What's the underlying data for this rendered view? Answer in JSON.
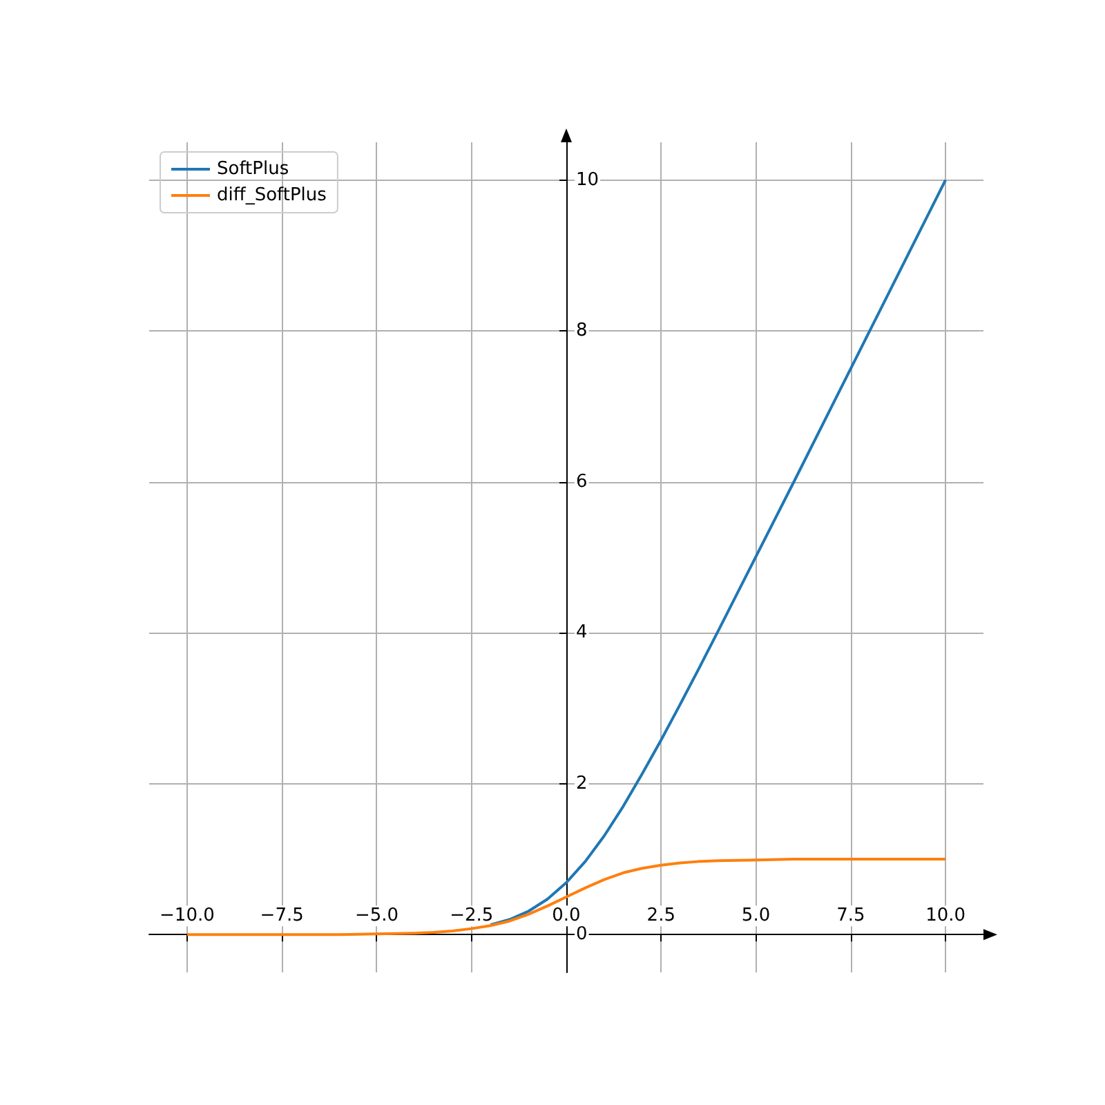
{
  "chart_data": {
    "type": "line",
    "x": [
      -10,
      -9,
      -8,
      -7,
      -6,
      -5,
      -4,
      -3.5,
      -3,
      -2.5,
      -2,
      -1.5,
      -1,
      -0.5,
      0,
      0.5,
      1,
      1.5,
      2,
      2.5,
      3,
      3.5,
      4,
      5,
      6,
      7,
      8,
      9,
      10
    ],
    "series": [
      {
        "name": "SoftPlus",
        "color": "#1f77b4",
        "values": [
          null,
          null,
          null,
          null,
          null,
          null,
          null,
          null,
          null,
          null,
          0.13,
          0.2,
          0.31,
          0.47,
          0.69,
          0.97,
          1.31,
          1.7,
          2.13,
          2.58,
          3.05,
          3.53,
          4.02,
          5.01,
          6,
          7,
          8,
          9,
          10
        ]
      },
      {
        "name": "diff_SoftPlus",
        "color": "#ff7f0e",
        "values": [
          0,
          0,
          0,
          0,
          0,
          0.01,
          0.02,
          0.03,
          0.05,
          0.08,
          0.12,
          0.18,
          0.27,
          0.38,
          0.5,
          0.62,
          0.73,
          0.82,
          0.88,
          0.92,
          0.95,
          0.97,
          0.98,
          0.99,
          1,
          1,
          1,
          1,
          1
        ]
      }
    ],
    "xlim": [
      -11,
      11
    ],
    "xticks": [
      {
        "value": -10,
        "label": "−10.0"
      },
      {
        "value": -7.5,
        "label": "−7.5"
      },
      {
        "value": -5,
        "label": "−5.0"
      },
      {
        "value": -2.5,
        "label": "−2.5"
      },
      {
        "value": 0,
        "label": "0.0"
      },
      {
        "value": 2.5,
        "label": "2.5"
      },
      {
        "value": 5,
        "label": "5.0"
      },
      {
        "value": 7.5,
        "label": "7.5"
      },
      {
        "value": 10,
        "label": "10.0"
      }
    ],
    "ylim": [
      -0.5,
      10.5
    ],
    "yticks": [
      0,
      2,
      4,
      6,
      8,
      10
    ],
    "grid": true,
    "legend": "top left",
    "marker": "none",
    "line_style": "solid"
  }
}
